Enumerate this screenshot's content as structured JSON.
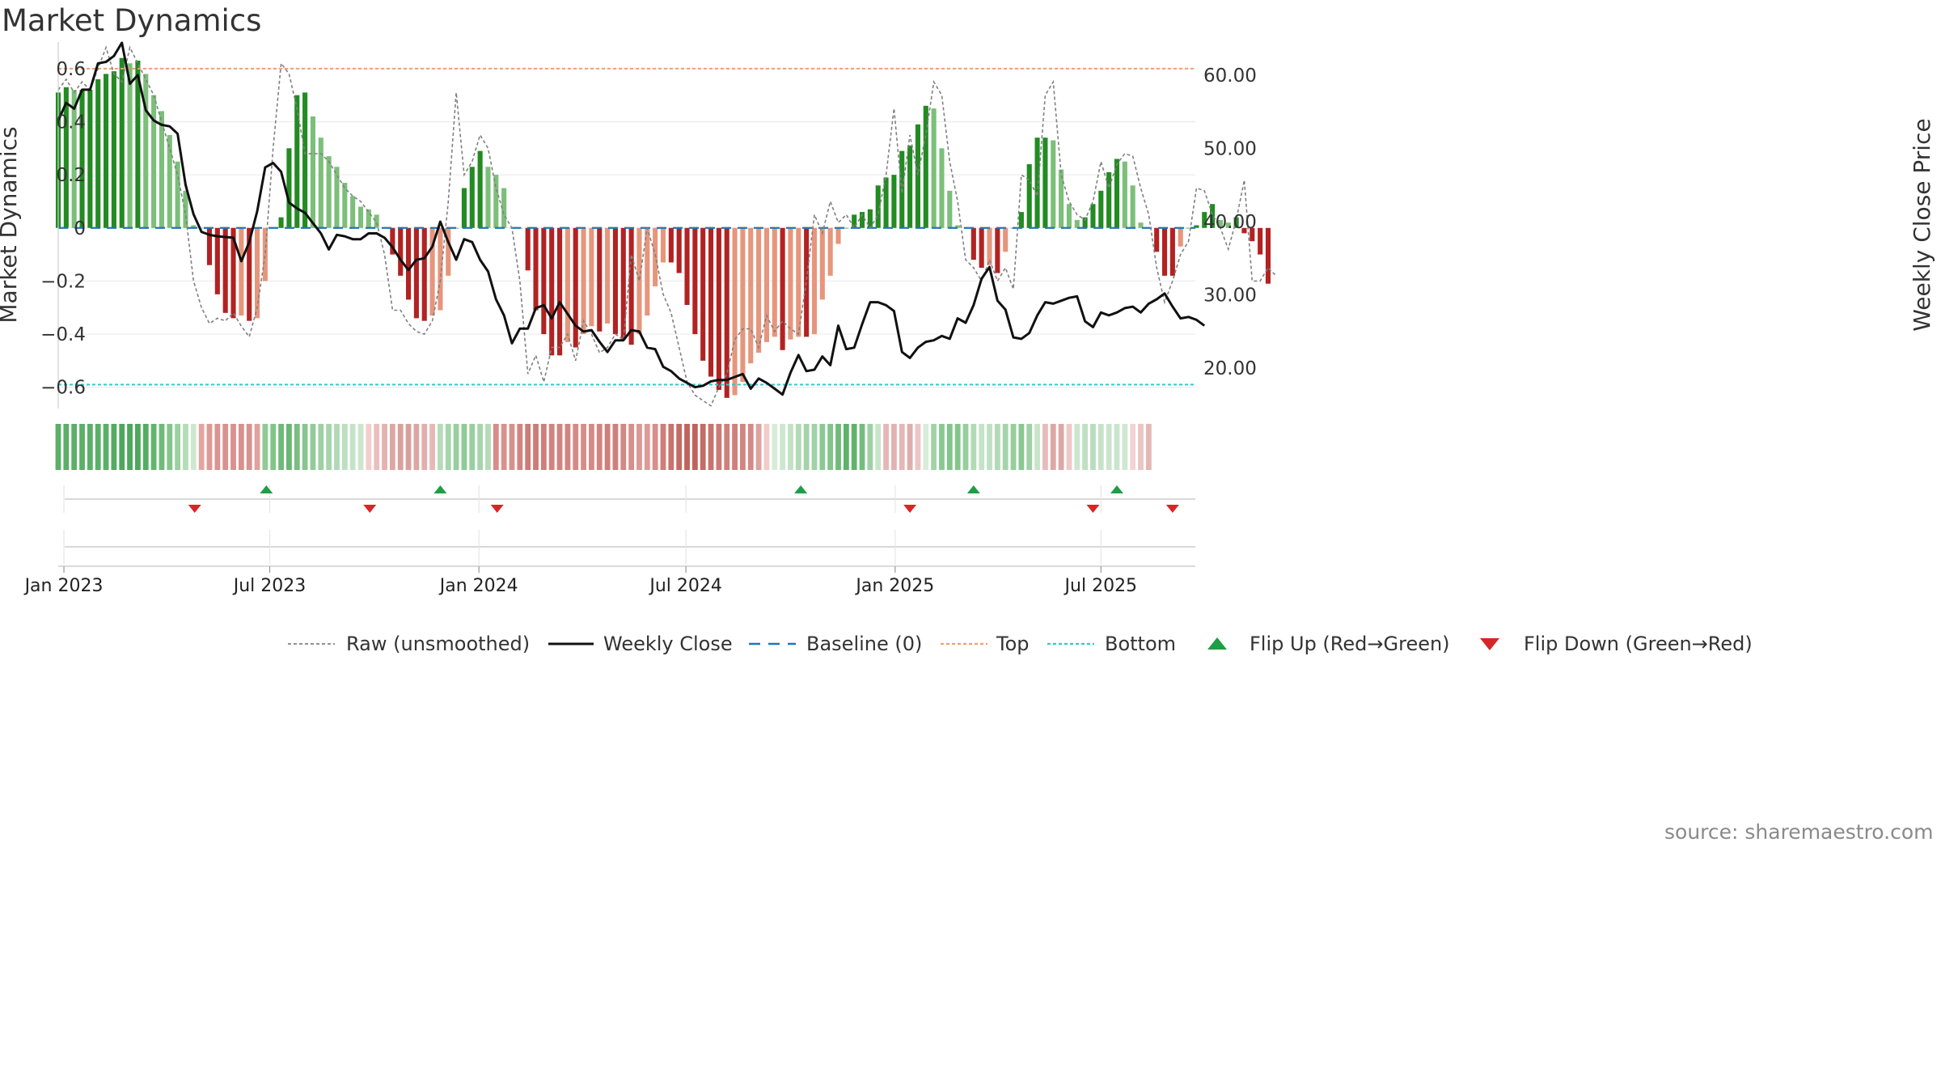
{
  "title": "Market Dynamics",
  "source": "source: sharemaestro.com",
  "colors": {
    "strong_green": "#228b22",
    "light_green": "#7cbf7a",
    "strong_red": "#b22222",
    "light_red": "#e6967c",
    "top_line": "#f0a070",
    "bottom_line": "#2ccbd0",
    "baseline": "#1f77b4",
    "raw": "#808080",
    "close": "#111111",
    "flip_up": "#1e9e46",
    "flip_down": "#d62728"
  },
  "chart_data": {
    "type": "bar",
    "title": "Market Dynamics",
    "ylabel": "Market Dynamics",
    "y2label": "Weekly Close Price",
    "ylim": [
      -0.68,
      0.7
    ],
    "y2lim": [
      14.5,
      64.5
    ],
    "yticks": [
      -0.6,
      -0.4,
      -0.2,
      0,
      0.2,
      0.4,
      0.6
    ],
    "ytick_labels": [
      "−0.6",
      "−0.4",
      "−0.2",
      "0",
      "0.2",
      "0.4",
      "0.6"
    ],
    "y2ticks": [
      20,
      30,
      40,
      50,
      60
    ],
    "y2tick_labels": [
      "20.00",
      "30.00",
      "40.00",
      "50.00",
      "60.00"
    ],
    "xlim": [
      "2022-12-27",
      "2025-09-22"
    ],
    "xticks": [
      "2023-01-01",
      "2023-07-01",
      "2024-01-01",
      "2024-07-01",
      "2025-01-01",
      "2025-07-01"
    ],
    "xtick_labels": [
      "Jan 2023",
      "Jul 2023",
      "Jan 2024",
      "Jul 2024",
      "Jan 2025",
      "Jul 2025"
    ],
    "start_date": "2022-12-27",
    "top_level": 0.6,
    "bottom_level": -0.59,
    "smoothed": [
      0.51,
      0.53,
      0.52,
      0.52,
      0.52,
      0.56,
      0.58,
      0.59,
      0.64,
      0.62,
      0.63,
      0.58,
      0.5,
      0.44,
      0.35,
      0.25,
      0.14,
      0.01,
      0.0,
      -0.14,
      -0.25,
      -0.32,
      -0.34,
      -0.33,
      -0.35,
      -0.34,
      -0.2,
      0.0,
      0.04,
      0.3,
      0.5,
      0.51,
      0.42,
      0.34,
      0.27,
      0.23,
      0.17,
      0.12,
      0.08,
      0.07,
      0.05,
      0.0,
      -0.1,
      -0.18,
      -0.27,
      -0.34,
      -0.35,
      -0.33,
      -0.31,
      -0.18,
      0.0,
      0.15,
      0.23,
      0.29,
      0.23,
      0.2,
      0.15,
      0.0,
      0.0,
      -0.16,
      -0.31,
      -0.4,
      -0.48,
      -0.48,
      -0.43,
      -0.45,
      -0.4,
      -0.37,
      -0.39,
      -0.36,
      -0.4,
      -0.42,
      -0.44,
      -0.4,
      -0.33,
      -0.22,
      -0.13,
      -0.13,
      -0.17,
      -0.29,
      -0.4,
      -0.5,
      -0.56,
      -0.61,
      -0.64,
      -0.63,
      -0.58,
      -0.51,
      -0.47,
      -0.43,
      -0.41,
      -0.46,
      -0.42,
      -0.41,
      -0.41,
      -0.4,
      -0.27,
      -0.18,
      -0.06,
      0.0,
      0.05,
      0.06,
      0.07,
      0.16,
      0.19,
      0.2,
      0.29,
      0.31,
      0.39,
      0.46,
      0.45,
      0.3,
      0.14,
      0.01,
      0.0,
      -0.12,
      -0.15,
      -0.14,
      -0.17,
      -0.09,
      0.0,
      0.06,
      0.24,
      0.34,
      0.34,
      0.33,
      0.22,
      0.09,
      0.03,
      0.04,
      0.09,
      0.14,
      0.21,
      0.26,
      0.25,
      0.16,
      0.02,
      0.0,
      -0.09,
      -0.18,
      -0.18,
      -0.07,
      0.0,
      0.01,
      0.06,
      0.09,
      0.03,
      0.02,
      0.04,
      -0.02,
      -0.05,
      -0.1,
      -0.21
    ],
    "raw": [
      0.52,
      0.56,
      0.51,
      0.55,
      0.52,
      0.6,
      0.68,
      0.58,
      0.55,
      0.68,
      0.62,
      0.56,
      0.5,
      0.4,
      0.3,
      0.2,
      0.05,
      -0.2,
      -0.3,
      -0.36,
      -0.34,
      -0.35,
      -0.32,
      -0.37,
      -0.41,
      -0.3,
      -0.1,
      0.3,
      0.62,
      0.58,
      0.45,
      0.28,
      0.28,
      0.28,
      0.25,
      0.2,
      0.15,
      0.12,
      0.1,
      0.06,
      0.02,
      -0.1,
      -0.31,
      -0.31,
      -0.36,
      -0.39,
      -0.4,
      -0.35,
      -0.2,
      0.1,
      0.51,
      0.2,
      0.25,
      0.35,
      0.3,
      0.15,
      0.05,
      0.0,
      -0.2,
      -0.55,
      -0.48,
      -0.58,
      -0.45,
      -0.45,
      -0.4,
      -0.5,
      -0.35,
      -0.4,
      -0.47,
      -0.45,
      -0.4,
      -0.42,
      -0.1,
      -0.2,
      0.0,
      -0.1,
      -0.25,
      -0.32,
      -0.45,
      -0.58,
      -0.63,
      -0.65,
      -0.67,
      -0.6,
      -0.55,
      -0.42,
      -0.38,
      -0.38,
      -0.45,
      -0.33,
      -0.39,
      -0.35,
      -0.38,
      -0.4,
      -0.2,
      0.05,
      -0.02,
      0.1,
      0.02,
      0.05,
      0.0,
      0.05,
      0.0,
      0.05,
      0.2,
      0.45,
      0.13,
      0.35,
      0.2,
      0.35,
      0.55,
      0.5,
      0.25,
      0.1,
      -0.12,
      -0.15,
      -0.2,
      -0.12,
      -0.2,
      -0.15,
      -0.23,
      0.2,
      0.18,
      0.12,
      0.5,
      0.55,
      0.2,
      0.1,
      0.05,
      0.03,
      0.1,
      0.25,
      0.15,
      0.24,
      0.28,
      0.27,
      0.15,
      0.05,
      -0.15,
      -0.28,
      -0.2,
      -0.1,
      -0.05,
      0.15,
      0.14,
      0.05,
      0.0,
      -0.08,
      0.03,
      0.18,
      -0.2,
      -0.2,
      -0.15,
      -0.18
    ],
    "close": [
      53.8,
      56.2,
      55.4,
      58.0,
      58.0,
      61.6,
      61.8,
      62.6,
      64.4,
      58.8,
      60.0,
      55.2,
      53.8,
      53.2,
      53.0,
      52.0,
      45.0,
      41.0,
      38.6,
      38.2,
      38.0,
      37.9,
      37.8,
      34.6,
      37.2,
      41.4,
      47.4,
      48.0,
      46.8,
      42.6,
      41.8,
      41.2,
      39.8,
      38.4,
      36.2,
      38.2,
      38.0,
      37.6,
      37.6,
      38.4,
      38.4,
      37.8,
      36.5,
      34.8,
      33.4,
      34.8,
      35.0,
      36.6,
      40.0,
      37.2,
      34.8,
      37.6,
      37.2,
      34.8,
      33.2,
      29.4,
      27.2,
      23.4,
      25.4,
      25.4,
      28.2,
      28.6,
      26.8,
      29.0,
      27.4,
      25.8,
      25.0,
      25.2,
      23.6,
      22.2,
      23.8,
      23.8,
      25.2,
      25.0,
      22.8,
      22.6,
      20.2,
      19.6,
      18.6,
      18.0,
      17.4,
      17.6,
      18.2,
      18.4,
      18.4,
      18.8,
      19.2,
      17.2,
      18.6,
      18.0,
      17.2,
      16.4,
      19.4,
      21.8,
      19.6,
      19.8,
      21.6,
      20.4,
      25.8,
      22.6,
      22.8,
      26.0,
      29.0,
      29.0,
      28.6,
      27.8,
      22.2,
      21.4,
      22.8,
      23.6,
      23.8,
      24.4,
      24.0,
      26.8,
      26.2,
      28.6,
      32.2,
      33.8,
      29.2,
      28.0,
      24.2,
      24.0,
      24.8,
      27.2,
      29.0,
      28.8,
      29.2,
      29.6,
      29.8,
      26.4,
      25.6,
      27.6,
      27.2,
      27.6,
      28.2,
      28.4,
      27.6,
      28.8,
      29.4,
      30.2,
      28.4,
      26.8,
      27.0,
      26.6,
      25.8
    ]
  },
  "regime_strip": [
    "#5caf68",
    "#5caf68",
    "#5caf68",
    "#5caf68",
    "#5caf68",
    "#5caf68",
    "#5caf68",
    "#55ab62",
    "#4da75c",
    "#4da75c",
    "#4da75c",
    "#55ab62",
    "#63b46f",
    "#70ba7a",
    "#85c58d",
    "#9bd0a1",
    "#b5dcb8",
    "#cfe8d0",
    "#e3a5a1",
    "#dc9a96",
    "#d89591",
    "#d69390",
    "#d8928e",
    "#d8918d",
    "#d69490",
    "#e0a29e",
    "#8fcb96",
    "#82c58a",
    "#6fba78",
    "#68b773",
    "#78bf80",
    "#88c690",
    "#92cb99",
    "#9dd0a3",
    "#a7d5ac",
    "#b0d9b5",
    "#bcdfc0",
    "#c4e3c7",
    "#cbe6cd",
    "#f0cfcd",
    "#e9c0bd",
    "#e3b3b0",
    "#dda8a4",
    "#d9a09c",
    "#d8a09c",
    "#dca6a2",
    "#e1b0ac",
    "#e6b9b5",
    "#b5dcb9",
    "#a6d5ab",
    "#98cf9e",
    "#8ecb95",
    "#98cf9e",
    "#a6d5ab",
    "#b4dbb8",
    "#d98c88",
    "#d9918d",
    "#d7918d",
    "#d28580",
    "#cc7c77",
    "#cc7c77",
    "#cf7f7a",
    "#d2837f",
    "#d08581",
    "#cf8581",
    "#d48a86",
    "#d58d89",
    "#d48a86",
    "#d08581",
    "#cc807c",
    "#cd817d",
    "#d18985",
    "#d88f8b",
    "#dc9894",
    "#dd9a96",
    "#d88f8b",
    "#cf7e79",
    "#c9726d",
    "#c46a65",
    "#c2625d",
    "#c2625d",
    "#c46c67",
    "#c8736e",
    "#cd7b76",
    "#cf807b",
    "#d07f7a",
    "#d28581",
    "#d48a86",
    "#dca3a0",
    "#f0cccb",
    "#d7ecd8",
    "#cce7ce",
    "#c2e2c5",
    "#b2dab6",
    "#a4d3a9",
    "#a2d2a7",
    "#8bc892",
    "#83c48b",
    "#70bb79",
    "#5fb26a",
    "#61b36c",
    "#75bd7e",
    "#9ed1a4",
    "#c8e5ca",
    "#e6b7b4",
    "#e2b3b0",
    "#e5b8b5",
    "#dfaeab",
    "#ecc6c4",
    "#d9ecda",
    "#a2d2a7",
    "#8ac891",
    "#82c48a",
    "#84c58b",
    "#97ce9d",
    "#b3dab7",
    "#c4e2c7",
    "#bfe0c2",
    "#b2dab6",
    "#a5d4aa",
    "#96ce9c",
    "#8ac891",
    "#9fd1a4",
    "#c8e5ca",
    "#e6bcb9",
    "#dca8a5",
    "#dca8a5",
    "#edc9c7",
    "#cbe6cd",
    "#bfe0c2",
    "#b9ddbc",
    "#c6e3c8",
    "#cae5cc",
    "#c9e5cb",
    "#cfe8d1",
    "#f1d4d2",
    "#eac5c2",
    "#e4b7b4"
  ],
  "flips": [
    {
      "type": "down",
      "date": "2023-04-26"
    },
    {
      "type": "up",
      "date": "2023-06-28"
    },
    {
      "type": "down",
      "date": "2023-09-27"
    },
    {
      "type": "up",
      "date": "2023-11-28"
    },
    {
      "type": "down",
      "date": "2024-01-17"
    },
    {
      "type": "up",
      "date": "2024-10-10"
    },
    {
      "type": "down",
      "date": "2025-01-14"
    },
    {
      "type": "up",
      "date": "2025-03-11"
    },
    {
      "type": "down",
      "date": "2025-06-24"
    },
    {
      "type": "up",
      "date": "2025-07-15"
    },
    {
      "type": "down",
      "date": "2025-09-02"
    }
  ],
  "legend": [
    {
      "key": "raw",
      "label": "Raw (unsmoothed)"
    },
    {
      "key": "close",
      "label": "Weekly Close"
    },
    {
      "key": "baseline",
      "label": "Baseline (0)"
    },
    {
      "key": "top",
      "label": "Top"
    },
    {
      "key": "bottom",
      "label": "Bottom"
    },
    {
      "key": "flip_up",
      "label": "Flip Up (Red→Green)"
    },
    {
      "key": "flip_down",
      "label": "Flip Down (Green→Red)"
    }
  ]
}
